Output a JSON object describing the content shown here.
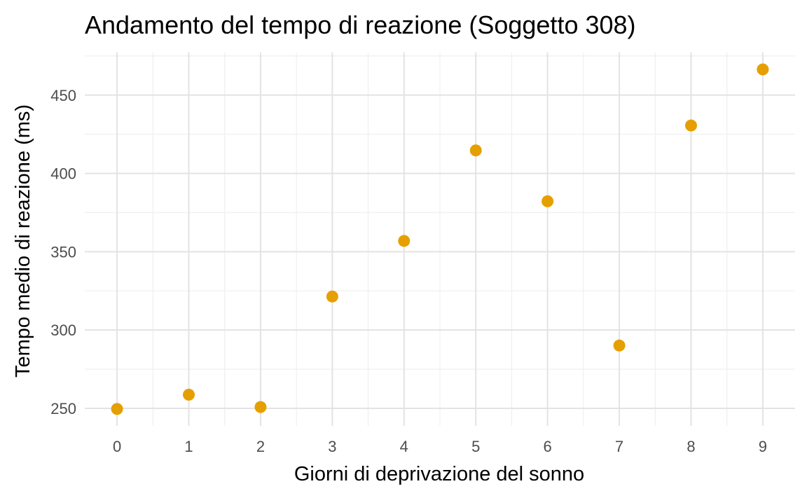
{
  "chart_data": {
    "type": "scatter",
    "title": "Andamento del tempo di reazione (Soggetto 308)",
    "xlabel": "Giorni di deprivazione del sonno",
    "ylabel": "Tempo medio di reazione (ms)",
    "x": [
      0,
      1,
      2,
      3,
      4,
      5,
      6,
      7,
      8,
      9
    ],
    "y": [
      249.6,
      258.7,
      250.8,
      321.4,
      356.9,
      414.7,
      382.2,
      290.1,
      430.6,
      466.4
    ],
    "xticks": [
      "0",
      "1",
      "2",
      "3",
      "4",
      "5",
      "6",
      "7",
      "8",
      "9"
    ],
    "yticks": [
      "250",
      "300",
      "350",
      "400",
      "450"
    ],
    "xlim": [
      -0.45,
      9.45
    ],
    "ylim": [
      238.8,
      477.2
    ],
    "grid": true,
    "point_color": "#E69F00"
  }
}
